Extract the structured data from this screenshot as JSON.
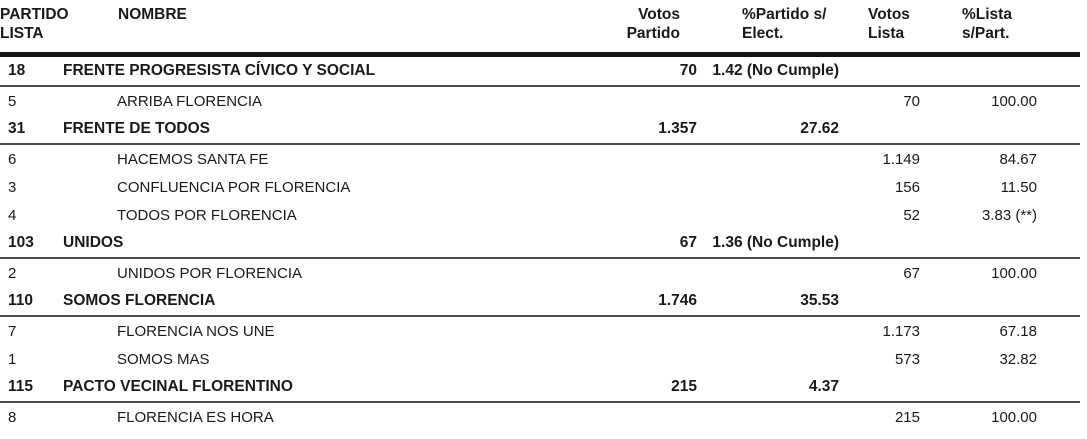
{
  "colors": {
    "text": "#1a1a1a",
    "rule_heavy": "#141414",
    "rule_light": "#4d4d4d",
    "background": "#ffffff"
  },
  "columns": {
    "partido_lista": {
      "l1": "PARTIDO",
      "l2": "LISTA"
    },
    "nombre": "NOMBRE",
    "votos_partido": {
      "l1": "Votos",
      "l2": "Partido"
    },
    "pct_partido": {
      "l1": "%Partido s/",
      "l2": "Elect."
    },
    "votos_lista": {
      "l1": "Votos",
      "l2": "Lista"
    },
    "pct_lista": {
      "l1": "%Lista",
      "l2": "s/Part."
    }
  },
  "rows": [
    {
      "type": "party",
      "partido": "18",
      "nombre": "FRENTE PROGRESISTA CÍVICO Y SOCIAL",
      "votos_partido": "70",
      "pct_partido": "1.42 (No Cumple)",
      "votos_lista": "",
      "pct_lista": ""
    },
    {
      "type": "list",
      "partido": "5",
      "nombre": "ARRIBA FLORENCIA",
      "votos_partido": "",
      "pct_partido": "",
      "votos_lista": "70",
      "pct_lista": "100.00"
    },
    {
      "type": "party",
      "partido": "31",
      "nombre": "FRENTE DE TODOS",
      "votos_partido": "1.357",
      "pct_partido": "27.62",
      "votos_lista": "",
      "pct_lista": ""
    },
    {
      "type": "list",
      "partido": "6",
      "nombre": "HACEMOS SANTA FE",
      "votos_partido": "",
      "pct_partido": "",
      "votos_lista": "1.149",
      "pct_lista": "84.67"
    },
    {
      "type": "list",
      "partido": "3",
      "nombre": "CONFLUENCIA POR FLORENCIA",
      "votos_partido": "",
      "pct_partido": "",
      "votos_lista": "156",
      "pct_lista": "11.50"
    },
    {
      "type": "list",
      "partido": "4",
      "nombre": "TODOS POR FLORENCIA",
      "votos_partido": "",
      "pct_partido": "",
      "votos_lista": "52",
      "pct_lista": "3.83 (**)"
    },
    {
      "type": "party",
      "partido": "103",
      "nombre": "UNIDOS",
      "votos_partido": "67",
      "pct_partido": "1.36 (No Cumple)",
      "votos_lista": "",
      "pct_lista": ""
    },
    {
      "type": "list",
      "partido": "2",
      "nombre": "UNIDOS POR FLORENCIA",
      "votos_partido": "",
      "pct_partido": "",
      "votos_lista": "67",
      "pct_lista": "100.00"
    },
    {
      "type": "party",
      "partido": "110",
      "nombre": "SOMOS FLORENCIA",
      "votos_partido": "1.746",
      "pct_partido": "35.53",
      "votos_lista": "",
      "pct_lista": ""
    },
    {
      "type": "list",
      "partido": "7",
      "nombre": "FLORENCIA NOS UNE",
      "votos_partido": "",
      "pct_partido": "",
      "votos_lista": "1.173",
      "pct_lista": "67.18"
    },
    {
      "type": "list",
      "partido": "1",
      "nombre": "SOMOS MAS",
      "votos_partido": "",
      "pct_partido": "",
      "votos_lista": "573",
      "pct_lista": "32.82"
    },
    {
      "type": "party",
      "partido": "115",
      "nombre": "PACTO VECINAL FLORENTINO",
      "votos_partido": "215",
      "pct_partido": "4.37",
      "votos_lista": "",
      "pct_lista": ""
    },
    {
      "type": "list",
      "partido": "8",
      "nombre": "FLORENCIA ES HORA",
      "votos_partido": "",
      "pct_partido": "",
      "votos_lista": "215",
      "pct_lista": "100.00"
    }
  ]
}
